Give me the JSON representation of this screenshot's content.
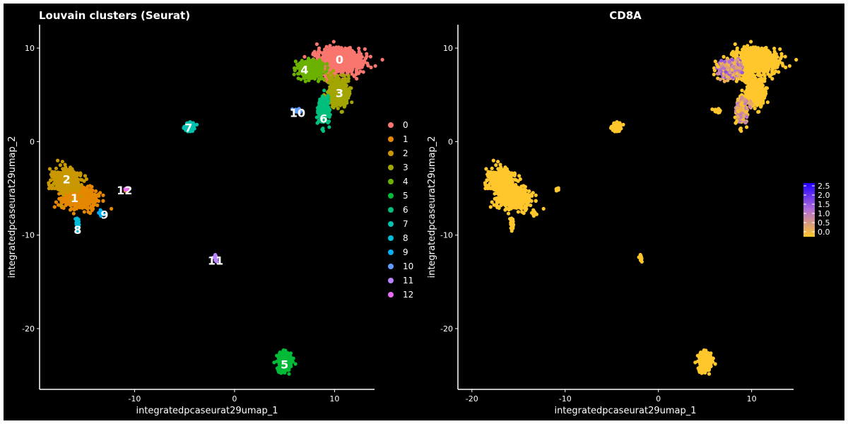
{
  "chart_data": [
    {
      "type": "scatter",
      "title": "Louvain clusters (Seurat)",
      "xlabel": "integratedpcaseurat29umap_1",
      "ylabel": "integratedpcaseurat29umap_2",
      "xlim": [
        -19.5,
        14
      ],
      "ylim": [
        -26.5,
        12.5
      ],
      "xticks": [
        -10,
        0,
        10
      ],
      "xtick_labels": [
        "-10",
        "0",
        "10"
      ],
      "yticks": [
        10,
        0,
        -10,
        -20
      ],
      "ytick_labels": [
        "10",
        "0",
        "-10",
        "-20"
      ],
      "grid": false,
      "legend": "right",
      "legend_entries": [
        "0",
        "1",
        "2",
        "3",
        "4",
        "5",
        "6",
        "7",
        "8",
        "9",
        "10",
        "11",
        "12"
      ],
      "clusters": [
        {
          "name": "0",
          "color": "#F8766D",
          "center": [
            10.5,
            8.5
          ],
          "spread": [
            2.0,
            1.2
          ],
          "label_at": [
            10.5,
            8.8
          ],
          "count": 900
        },
        {
          "name": "1",
          "color": "#E58700",
          "center": [
            -15.5,
            -6.0
          ],
          "spread": [
            1.6,
            1.0
          ],
          "label_at": [
            -16.0,
            -6.0
          ],
          "count": 520
        },
        {
          "name": "2",
          "color": "#C99800",
          "center": [
            -16.8,
            -4.2
          ],
          "spread": [
            1.2,
            1.1
          ],
          "label_at": [
            -16.8,
            -4.0
          ],
          "count": 480
        },
        {
          "name": "3",
          "color": "#A3A500",
          "center": [
            10.3,
            5.3
          ],
          "spread": [
            0.9,
            1.4
          ],
          "label_at": [
            10.5,
            5.2
          ],
          "count": 420
        },
        {
          "name": "4",
          "color": "#6BB100",
          "center": [
            7.6,
            7.7
          ],
          "spread": [
            1.1,
            0.8
          ],
          "label_at": [
            7.0,
            7.7
          ],
          "count": 380
        },
        {
          "name": "5",
          "color": "#00BA38",
          "center": [
            5.0,
            -23.5
          ],
          "spread": [
            0.6,
            0.9
          ],
          "label_at": [
            5.0,
            -23.8
          ],
          "count": 320
        },
        {
          "name": "6",
          "color": "#00BF7D",
          "center": [
            8.9,
            3.3
          ],
          "spread": [
            0.5,
            1.3
          ],
          "label_at": [
            8.9,
            2.5
          ],
          "count": 260
        },
        {
          "name": "7",
          "color": "#00C0AF",
          "center": [
            -4.5,
            1.6
          ],
          "spread": [
            0.45,
            0.35
          ],
          "label_at": [
            -4.6,
            1.5
          ],
          "count": 120
        },
        {
          "name": "8",
          "color": "#00BCD8",
          "center": [
            -15.7,
            -8.8
          ],
          "spread": [
            0.15,
            0.5
          ],
          "label_at": [
            -15.7,
            -9.4
          ],
          "count": 40
        },
        {
          "name": "9",
          "color": "#00B0F6",
          "center": [
            -13.3,
            -7.7
          ],
          "spread": [
            0.25,
            0.25
          ],
          "label_at": [
            -13.0,
            -7.8
          ],
          "count": 25
        },
        {
          "name": "10",
          "color": "#619CFF",
          "center": [
            6.3,
            3.3
          ],
          "spread": [
            0.3,
            0.25
          ],
          "label_at": [
            6.3,
            3.1
          ],
          "count": 25
        },
        {
          "name": "11",
          "color": "#B983FF",
          "center": [
            -1.9,
            -12.5
          ],
          "spread": [
            0.2,
            0.3
          ],
          "label_at": [
            -1.9,
            -12.7
          ],
          "count": 12
        },
        {
          "name": "12",
          "color": "#E76BF3",
          "center": [
            -10.8,
            -5.1
          ],
          "spread": [
            0.2,
            0.15
          ],
          "label_at": [
            -11.0,
            -5.2
          ],
          "count": 12
        }
      ]
    },
    {
      "type": "scatter",
      "title": "CD8A",
      "xlabel": "integratedpcaseurat29umap_1",
      "ylabel": "integratedpcaseurat29umap_2",
      "xlim": [
        -21.5,
        14.5
      ],
      "ylim": [
        -26.5,
        12.5
      ],
      "xticks": [
        -20,
        -10,
        0,
        10
      ],
      "xtick_labels": [
        "-20",
        "-10",
        "0",
        "10"
      ],
      "yticks": [
        10,
        0,
        -10,
        -20
      ],
      "ytick_labels": [
        "10",
        "0",
        "-10",
        "-20"
      ],
      "grid": false,
      "legend": "right",
      "colorbar": {
        "low_color": "#FFC72C",
        "mid_color": "#B46FD6",
        "high_color": "#2200FF",
        "range": [
          0.0,
          2.5
        ],
        "ticks": [
          "2.5",
          "2.0",
          "1.5",
          "1.0",
          "0.5",
          "0.0"
        ]
      },
      "expression_regions": [
        {
          "center": [
            7.6,
            7.7
          ],
          "level": 1.6
        },
        {
          "center": [
            8.9,
            3.3
          ],
          "level": 1.2
        }
      ]
    }
  ]
}
